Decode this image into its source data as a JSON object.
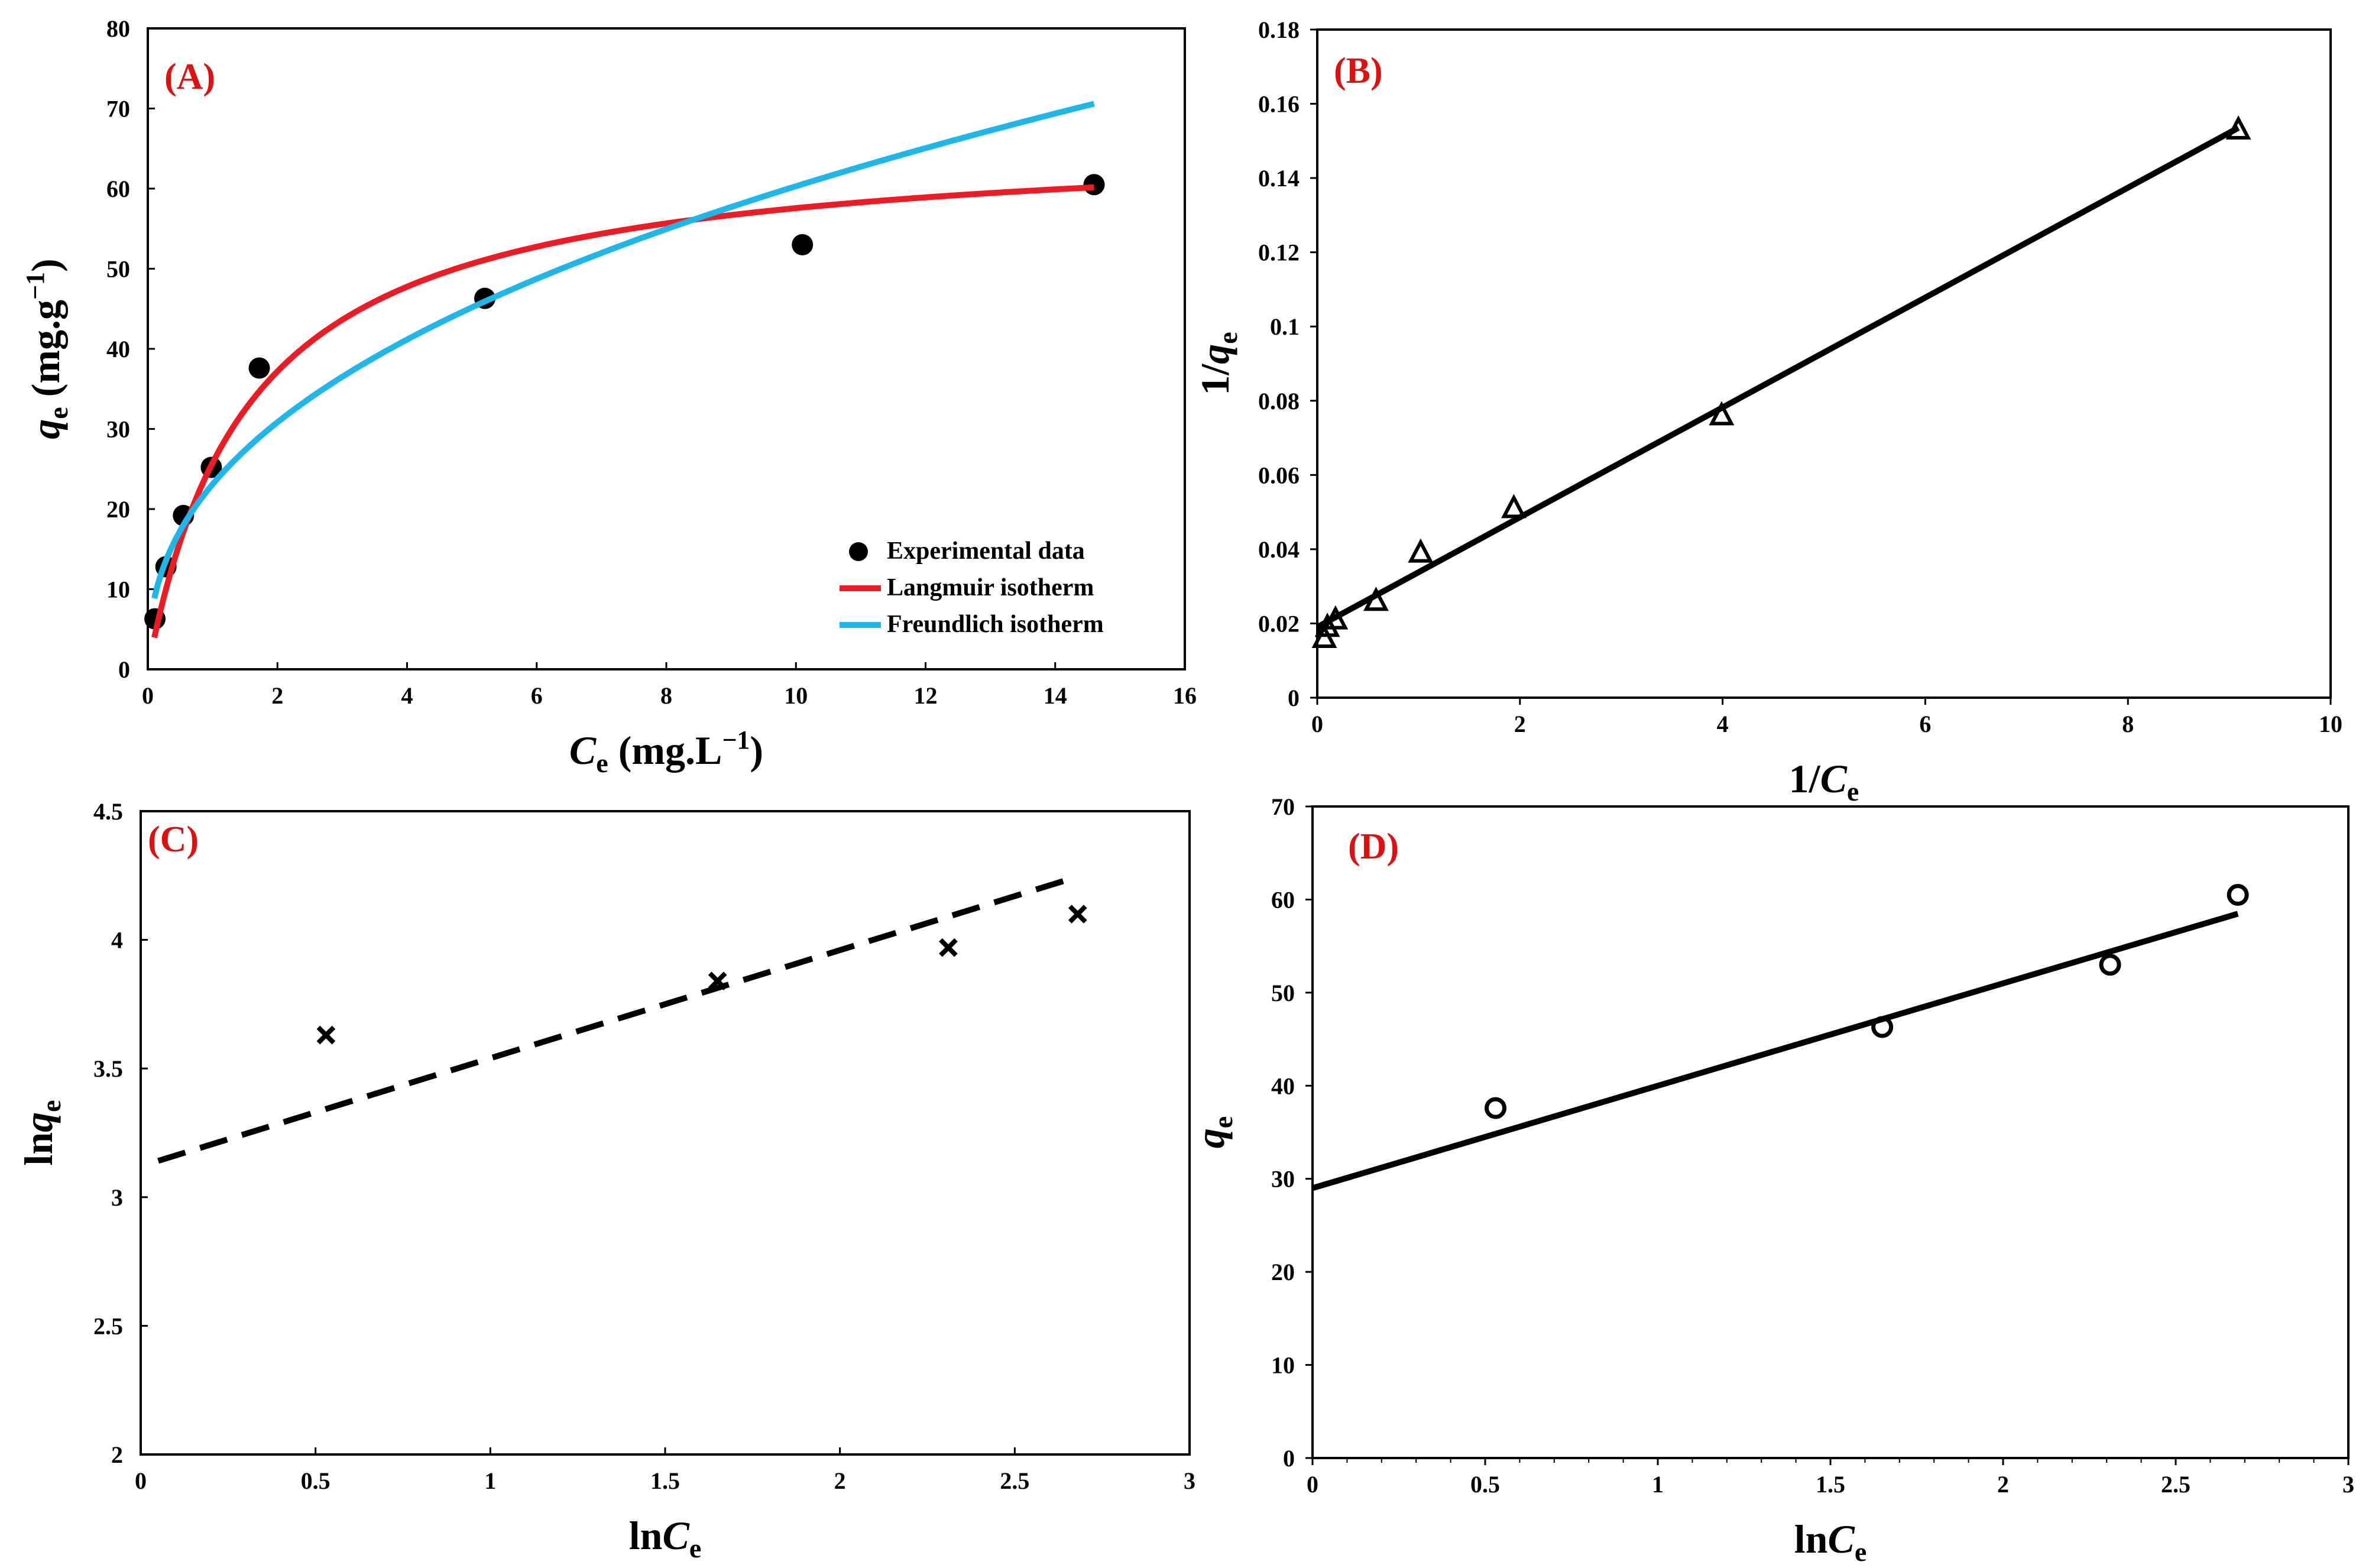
{
  "colors": {
    "langmuir": "#ed1c24",
    "freundlich": "#1fb6e8",
    "markers": "#000000",
    "panel_label": "#e01010"
  },
  "chart_data": [
    {
      "panel": "(A)",
      "type": "scatter",
      "xlabel": {
        "main": "C",
        "sub": "e",
        "suffix": " (mg.L",
        "sup": "−1",
        "close": ")"
      },
      "ylabel": {
        "main": "q",
        "sub": "e",
        "suffix": " (mg.g",
        "sup": "−1",
        "close": ")"
      },
      "xlim": [
        0,
        16
      ],
      "ylim": [
        0,
        80
      ],
      "xticks": [
        0,
        2,
        4,
        6,
        8,
        10,
        12,
        14,
        16
      ],
      "yticks": [
        0,
        10,
        20,
        30,
        40,
        50,
        60,
        70,
        80
      ],
      "series": [
        {
          "name": "Experimental data",
          "style": "filled-circle",
          "x": [
            0.11,
            0.28,
            0.55,
            0.98,
            1.72,
            5.2,
            10.1,
            14.6
          ],
          "y": [
            6.3,
            12.8,
            19.2,
            25.2,
            37.6,
            46.3,
            53.0,
            60.5
          ]
        },
        {
          "name": "Langmuir isotherm",
          "style": "line",
          "qmax": 66.7,
          "KL": 0.63,
          "xmin": 0.1,
          "xmax": 14.6
        },
        {
          "name": "Freundlich isotherm",
          "style": "line",
          "KF": 23.1,
          "n": 2.4,
          "xmin": 0.1,
          "xmax": 14.6
        }
      ],
      "legend": [
        "Experimental data",
        "Langmuir isotherm",
        "Freundlich isotherm"
      ],
      "legend_position": "bottom-right"
    },
    {
      "panel": "(B)",
      "type": "scatter",
      "xlabel": {
        "main": "1/C",
        "sub": "e"
      },
      "ylabel": {
        "main": "1/q",
        "sub": "e"
      },
      "xlim": [
        0,
        10
      ],
      "ylim": [
        0,
        0.18
      ],
      "xticks": [
        0,
        2,
        4,
        6,
        8,
        10
      ],
      "yticks": [
        "0",
        "0.02",
        "0.04",
        "0.06",
        "0.08",
        "0.1",
        "0.12",
        "0.14",
        "0.16",
        "0.18"
      ],
      "series": [
        {
          "name": "data",
          "style": "open-triangle",
          "x": [
            0.07,
            0.1,
            0.18,
            0.58,
            1.02,
            1.94,
            3.99,
            9.09
          ],
          "y": [
            0.016,
            0.019,
            0.021,
            0.026,
            0.039,
            0.051,
            0.076,
            0.153
          ]
        },
        {
          "name": "fit",
          "style": "line",
          "slope": 0.0148,
          "intercept": 0.019,
          "xmin": 0.0,
          "xmax": 9.09
        }
      ]
    },
    {
      "panel": "(C)",
      "type": "scatter",
      "xlabel": {
        "main": "lnC",
        "sub": "e"
      },
      "ylabel": {
        "main": "lnq",
        "sub": "e"
      },
      "xlim": [
        0,
        3
      ],
      "ylim": [
        2,
        4.5
      ],
      "xticks": [
        "0",
        "0.5",
        "1",
        "1.5",
        "2",
        "2.5",
        "3"
      ],
      "yticks": [
        "2",
        "2.5",
        "3",
        "3.5",
        "4",
        "4.5"
      ],
      "series": [
        {
          "name": "data",
          "style": "cross",
          "x": [
            0.53,
            1.65,
            2.31,
            2.68
          ],
          "y": [
            3.63,
            3.84,
            3.97,
            4.1
          ]
        },
        {
          "name": "fit",
          "style": "dashed-line",
          "slope": 0.42,
          "intercept": 3.12,
          "xmin": 0.05,
          "xmax": 2.68
        }
      ]
    },
    {
      "panel": "(D)",
      "type": "scatter",
      "xlabel": {
        "main": "lnC",
        "sub": "e"
      },
      "ylabel": {
        "main": "q",
        "sub": "e"
      },
      "xlim": [
        0,
        3
      ],
      "ylim": [
        0,
        70
      ],
      "xticks": [
        "0",
        "0.5",
        "1",
        "1.5",
        "2",
        "2.5",
        "3"
      ],
      "yticks": [
        "0",
        "10",
        "20",
        "30",
        "40",
        "50",
        "60",
        "70"
      ],
      "series": [
        {
          "name": "data",
          "style": "open-circle",
          "x": [
            0.53,
            1.65,
            2.31,
            2.68
          ],
          "y": [
            37.6,
            46.3,
            53.0,
            60.5
          ]
        },
        {
          "name": "fit",
          "style": "line",
          "slope": 11.0,
          "intercept": 29.0,
          "xmin": 0.0,
          "xmax": 2.68
        }
      ]
    }
  ]
}
